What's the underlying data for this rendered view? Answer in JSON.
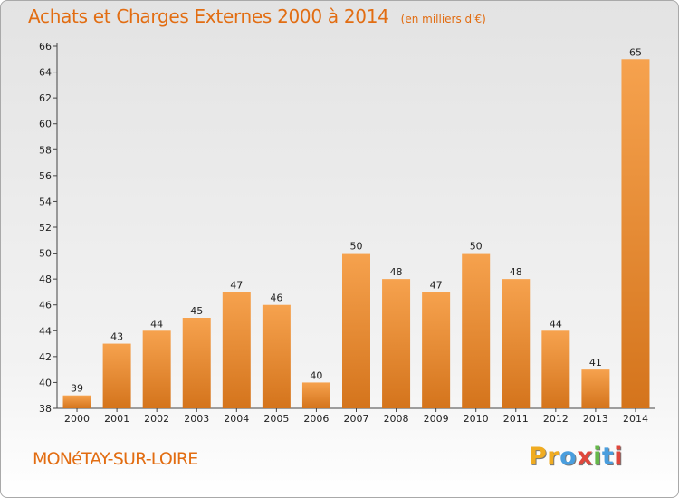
{
  "header": {
    "title": "Achats et Charges Externes 2000 à 2014",
    "unit": "(en milliers d'€)"
  },
  "footer": {
    "commune": "MONéTAY-SUR-LOIRE",
    "logo_letters": [
      "P",
      "r",
      "o",
      "x",
      "i",
      "t",
      "i"
    ],
    "logo_colors": [
      "#f0ac22",
      "#f0ac22",
      "#4a9ede",
      "#e0473c",
      "#66b84a",
      "#4a9ede",
      "#e0473c"
    ]
  },
  "colors": {
    "accent": "#e26d12",
    "bar_light": "#f6a24e",
    "bar_dark": "#d4741c"
  },
  "chart_data": {
    "type": "bar",
    "title": "Achats et Charges Externes 2000 à 2014",
    "subtitle": "(en milliers d'€)",
    "xlabel": "",
    "ylabel": "",
    "categories": [
      "2000",
      "2001",
      "2002",
      "2003",
      "2004",
      "2005",
      "2006",
      "2007",
      "2008",
      "2009",
      "2010",
      "2011",
      "2012",
      "2013",
      "2014"
    ],
    "values": [
      39,
      43,
      44,
      45,
      47,
      46,
      40,
      50,
      48,
      47,
      50,
      48,
      44,
      41,
      65
    ],
    "ylim": [
      38,
      66
    ],
    "ytick_step": 2,
    "grid": false
  }
}
